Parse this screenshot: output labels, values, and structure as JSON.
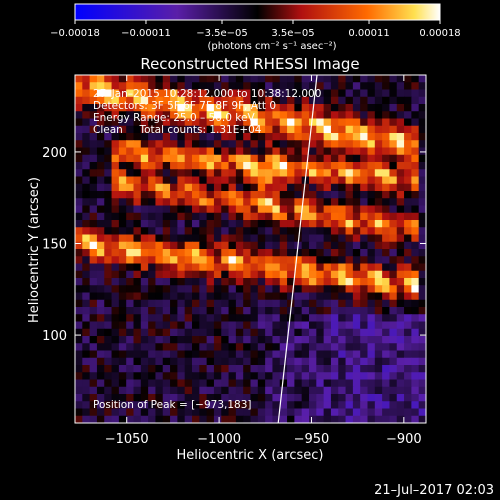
{
  "chart_data": {
    "type": "heatmap",
    "title": "Reconstructed RHESSI Image",
    "xlabel": "Heliocentric X (arcsec)",
    "ylabel": "Heliocentric Y (arcsec)",
    "xlim": [
      -1078,
      -888
    ],
    "ylim": [
      52,
      242
    ],
    "x_ticks": [
      -1050,
      -1000,
      -950,
      -900
    ],
    "y_ticks": [
      100,
      150,
      200
    ],
    "x_tick_labels": [
      "−1050",
      "−1000",
      "−950",
      "−900"
    ],
    "y_tick_labels": [
      "100",
      "150",
      "200"
    ],
    "colorbar": {
      "range": [
        -0.00018,
        0.00018
      ],
      "ticks": [
        -0.00018,
        -0.00011,
        -3.5e-05,
        3.5e-05,
        0.00011,
        0.00018
      ],
      "tick_labels": [
        "−0.00018",
        "−0.00011",
        "−3.5e−05",
        "3.5e−05",
        "0.00011",
        "0.00018"
      ],
      "unit_label": "(photons cm⁻² s⁻¹ asec⁻²)",
      "colors": [
        "#0000ff",
        "#7a1fbf",
        "#000000",
        "#b01010",
        "#ff6a00",
        "#ffffff"
      ]
    },
    "annotations": {
      "time": "27–Jan–2015 10:28:12.000 to 10:38:12.000",
      "detectors": "Detectors: 3F 5F 6F 7F 8F 9F, Att 0",
      "energy": "Energy Range: 25.0 – 50.0 keV",
      "method_counts": "Clean     Total counts: 1.31E+04",
      "peak": "Position of Peak = [−973,183]"
    },
    "peak": [
      -973,
      183
    ],
    "limb_line": [
      [
        -968,
        52
      ],
      [
        -947,
        242
      ]
    ],
    "emission_bands": [
      {
        "y0": 235,
        "y1": 205,
        "x0": -1075,
        "x1": -900,
        "width": 9,
        "amp": 1.0
      },
      {
        "y0": 200,
        "y1": 185,
        "x0": -1050,
        "x1": -900,
        "width": 7,
        "amp": 0.85
      },
      {
        "y0": 182,
        "y1": 158,
        "x0": -1050,
        "x1": -900,
        "width": 7,
        "amp": 0.8
      },
      {
        "y0": 150,
        "y1": 128,
        "x0": -1078,
        "x1": -900,
        "width": 8,
        "amp": 0.9
      }
    ]
  },
  "footer": {
    "date": "21–Jul–2017 02:03"
  }
}
